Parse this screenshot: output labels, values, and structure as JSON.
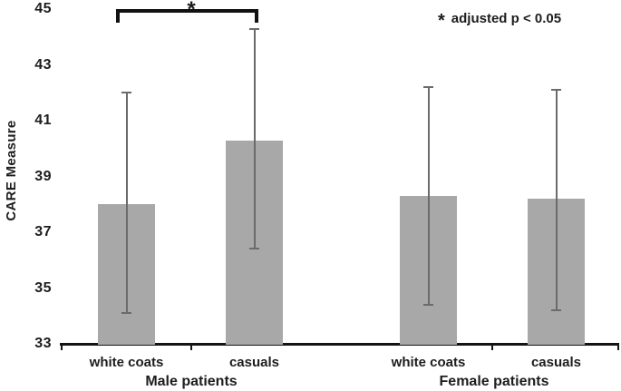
{
  "chart_data": {
    "type": "bar",
    "title": "",
    "ylabel": "CARE Measure",
    "xlabel": "",
    "ylim": [
      33,
      45
    ],
    "yticks": [
      45,
      43,
      41,
      39,
      37,
      35,
      33
    ],
    "grid": false,
    "bar_color": "#a8a8a8",
    "error_bar_color": "#6b6b6b",
    "groups": [
      {
        "label": "Male patients",
        "categories": [
          "white coats",
          "casuals"
        ],
        "values": [
          38.0,
          40.3
        ],
        "error_low": [
          34.1,
          36.4
        ],
        "error_high": [
          42.0,
          44.3
        ]
      },
      {
        "label": "Female patients",
        "categories": [
          "white coats",
          "casuals"
        ],
        "values": [
          38.3,
          38.2
        ],
        "error_low": [
          34.4,
          34.2
        ],
        "error_high": [
          42.2,
          42.1
        ]
      }
    ],
    "significance": {
      "bracket_between": [
        "Male patients / white coats",
        "Male patients / casuals"
      ],
      "label": "*"
    },
    "annotation_star": "*",
    "annotation_text": "adjusted p < 0.05",
    "legend_position": "top-right"
  }
}
